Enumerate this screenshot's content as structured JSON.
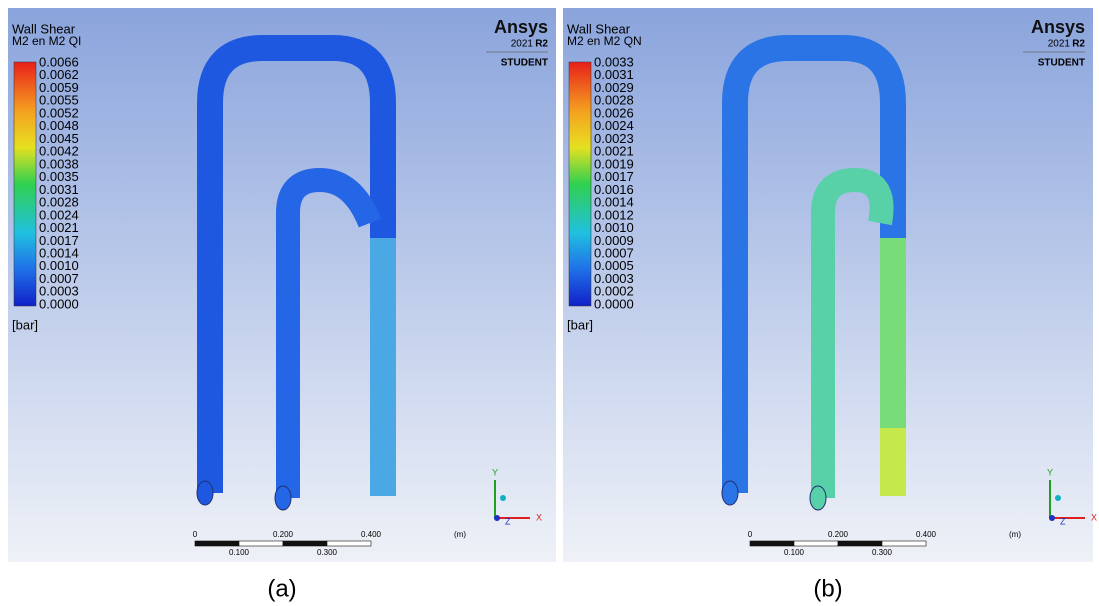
{
  "panels": [
    {
      "legend": {
        "title": "Wall Shear",
        "subtitle": "M2 en M2 QI",
        "values": [
          "0.0066",
          "0.0062",
          "0.0059",
          "0.0055",
          "0.0052",
          "0.0048",
          "0.0045",
          "0.0042",
          "0.0038",
          "0.0035",
          "0.0031",
          "0.0028",
          "0.0024",
          "0.0021",
          "0.0017",
          "0.0014",
          "0.0010",
          "0.0007",
          "0.0003",
          "0.0000"
        ],
        "unit": "[bar]"
      },
      "brand": {
        "name": "Ansys",
        "year": "2021",
        "release": "R2",
        "edition": "STUDENT"
      },
      "scale": {
        "top_labels": [
          "0",
          "0.200",
          "0.400",
          "(m)"
        ],
        "bottom_labels": [
          "0.100",
          "0.300"
        ]
      },
      "axes": {
        "y": "Y",
        "z": "Z",
        "x": "X"
      },
      "caption": "(a)"
    },
    {
      "legend": {
        "title": "Wall Shear",
        "subtitle": "M2 en M2 QN",
        "values": [
          "0.0033",
          "0.0031",
          "0.0029",
          "0.0028",
          "0.0026",
          "0.0024",
          "0.0023",
          "0.0021",
          "0.0019",
          "0.0017",
          "0.0016",
          "0.0014",
          "0.0012",
          "0.0010",
          "0.0009",
          "0.0007",
          "0.0005",
          "0.0003",
          "0.0002",
          "0.0000"
        ],
        "unit": "[bar]"
      },
      "brand": {
        "name": "Ansys",
        "year": "2021",
        "release": "R2",
        "edition": "STUDENT"
      },
      "scale": {
        "top_labels": [
          "0",
          "0.200",
          "0.400",
          "(m)"
        ],
        "bottom_labels": [
          "0.100",
          "0.300"
        ]
      },
      "axes": {
        "y": "Y",
        "z": "Z",
        "x": "X"
      },
      "caption": "(b)"
    }
  ]
}
